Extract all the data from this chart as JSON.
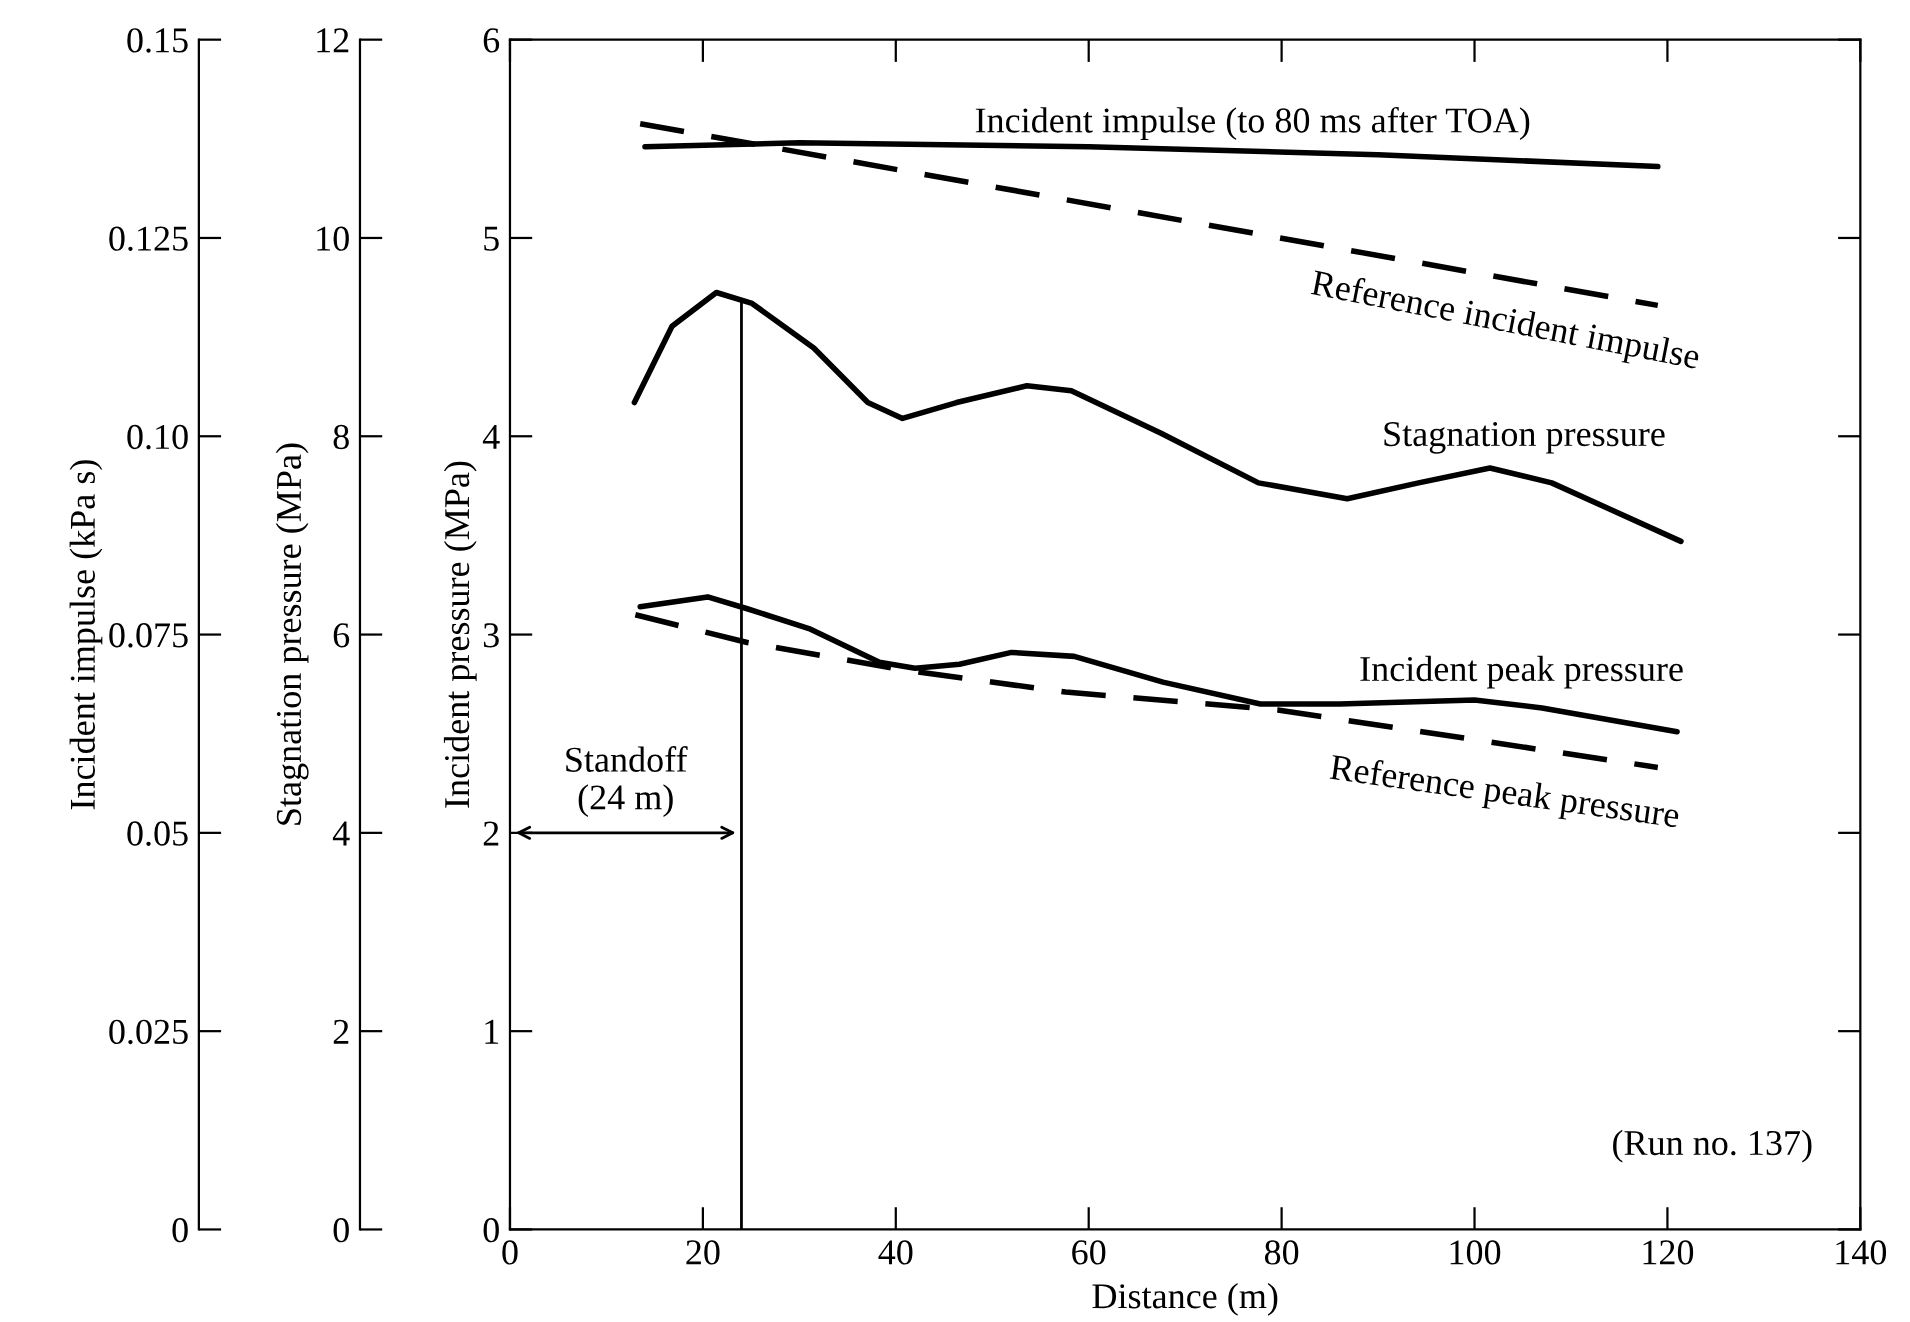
{
  "chart_data": {
    "type": "line",
    "xlabel": "Distance (m)",
    "ylabel": "Incident pressure (MPa)",
    "y2label": "Stagnation pressure (MPa)",
    "y3label": "Incident impulse (kPa s)",
    "xlim": [
      0,
      140
    ],
    "xticks": [
      0,
      20,
      40,
      60,
      80,
      100,
      120,
      140
    ],
    "ylim": [
      0,
      6
    ],
    "yticks": [
      0,
      1,
      2,
      3,
      4,
      5,
      6
    ],
    "y2lim": [
      0,
      12
    ],
    "y2ticks": [
      0,
      2,
      4,
      6,
      8,
      10,
      12
    ],
    "y3lim": [
      0,
      0.15
    ],
    "y3ticks": [
      0,
      0.025,
      0.05,
      0.075,
      {
        "value": 0.1,
        "label": "0.10"
      },
      0.125,
      0.15
    ],
    "grid": false,
    "marker": "none",
    "series": [
      {
        "name": "Incident impulse (to 80 ms after TOA)",
        "color": "#000000",
        "axis": "y3",
        "line_style": "solid",
        "x": [
          14,
          30,
          60,
          90,
          119
        ],
        "values": [
          0.1365,
          0.137,
          0.1365,
          0.1355,
          0.134
        ]
      },
      {
        "name": "Reference incident impulse",
        "color": "#000000",
        "axis": "y3",
        "line_style": "dashed",
        "x": [
          13.5,
          119
        ],
        "values": [
          0.1394,
          0.1165
        ]
      },
      {
        "name": "Stagnation pressure",
        "color": "#000000",
        "axis": "y2",
        "line_style": "solid",
        "x": [
          12.9,
          16.8,
          21.4,
          25.1,
          31.5,
          37.1,
          40.7,
          46.3,
          53.6,
          58.2,
          67.5,
          77.6,
          86.8,
          94.2,
          101.6,
          108,
          121.4
        ],
        "values": [
          8.34,
          9.11,
          9.45,
          9.34,
          8.89,
          8.34,
          8.18,
          8.34,
          8.51,
          8.46,
          8.03,
          7.53,
          7.37,
          7.53,
          7.68,
          7.53,
          6.94
        ]
      },
      {
        "name": "Incident peak pressure",
        "color": "#000000",
        "axis": "y",
        "line_style": "solid",
        "x": [
          13.5,
          20.5,
          24.6,
          31,
          38.3,
          42,
          46.6,
          52,
          58.5,
          67.7,
          77.8,
          86,
          100,
          107,
          121
        ],
        "values": [
          3.14,
          3.19,
          3.13,
          3.03,
          2.86,
          2.83,
          2.85,
          2.91,
          2.89,
          2.76,
          2.65,
          2.65,
          2.67,
          2.63,
          2.51
        ]
      },
      {
        "name": "Reference peak pressure",
        "color": "#000000",
        "axis": "y",
        "line_style": "dashed",
        "x": [
          13,
          24.6,
          41,
          57.6,
          79.6,
          119
        ],
        "values": [
          3.1,
          2.96,
          2.82,
          2.71,
          2.62,
          2.33
        ]
      }
    ],
    "ref_lines": [
      {
        "axis": "x",
        "value": 24,
        "label": "Standoff\n(24 m)",
        "color": "#000000",
        "line_style": "solid"
      }
    ],
    "annotations": [
      "(Run no. 137)"
    ]
  }
}
